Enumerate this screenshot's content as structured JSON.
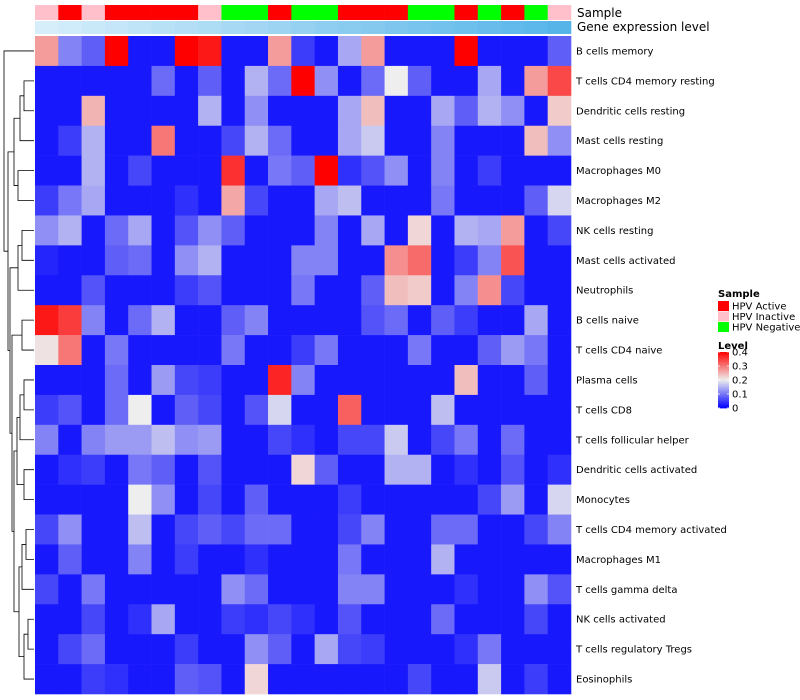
{
  "chart_data": {
    "type": "heatmap",
    "title": "",
    "row_labels": [
      "B cells memory",
      "T cells CD4 memory resting",
      "Dendritic cells resting",
      "Mast cells resting",
      "Macrophages M0",
      "Macrophages M2",
      "NK cells resting",
      "Mast cells activated",
      "Neutrophils",
      "B cells naive",
      "T cells CD4 naive",
      "Plasma cells",
      "T cells CD8",
      "T cells follicular helper",
      "Dendritic cells activated",
      "Monocytes",
      "T cells CD4 memory activated",
      "Macrophages M1",
      "T cells gamma delta",
      "NK cells activated",
      "T cells regulatory  Tregs",
      "Eosinophils"
    ],
    "annotation_labels": [
      "Sample",
      "Gene expression level"
    ],
    "samples": [
      "HPV Inactive",
      "HPV Active",
      "HPV Inactive",
      "HPV Active",
      "HPV Active",
      "HPV Active",
      "HPV Active",
      "HPV Inactive",
      "HPV Negative",
      "HPV Negative",
      "HPV Active",
      "HPV Negative",
      "HPV Negative",
      "HPV Active",
      "HPV Active",
      "HPV Active",
      "HPV Negative",
      "HPV Negative",
      "HPV Active",
      "HPV Negative",
      "HPV Active",
      "HPV Negative",
      "HPV Inactive"
    ],
    "expression_levels": [
      0.02,
      0.03,
      0.04,
      0.05,
      0.06,
      0.07,
      0.08,
      0.09,
      0.1,
      0.11,
      0.12,
      0.13,
      0.14,
      0.15,
      0.16,
      0.17,
      0.18,
      0.19,
      0.2,
      0.21,
      0.22,
      0.23,
      0.24
    ],
    "values": [
      [
        0.27,
        0.11,
        0.08,
        0.4,
        0.02,
        0.02,
        0.4,
        0.38,
        0.02,
        0.02,
        0.27,
        0.05,
        0.02,
        0.14,
        0.27,
        0.02,
        0.02,
        0.02,
        0.4,
        0.02,
        0.02,
        0.02,
        0.08
      ],
      [
        0.02,
        0.02,
        0.02,
        0.02,
        0.02,
        0.09,
        0.02,
        0.08,
        0.02,
        0.15,
        0.09,
        0.4,
        0.12,
        0.02,
        0.09,
        0.2,
        0.08,
        0.02,
        0.02,
        0.14,
        0.02,
        0.27,
        0.34
      ],
      [
        0.02,
        0.02,
        0.25,
        0.02,
        0.02,
        0.02,
        0.02,
        0.15,
        0.02,
        0.12,
        0.02,
        0.02,
        0.02,
        0.14,
        0.24,
        0.02,
        0.02,
        0.14,
        0.08,
        0.15,
        0.12,
        0.02,
        0.23
      ],
      [
        0.02,
        0.05,
        0.15,
        0.02,
        0.02,
        0.3,
        0.02,
        0.02,
        0.06,
        0.15,
        0.09,
        0.02,
        0.02,
        0.14,
        0.17,
        0.02,
        0.02,
        0.11,
        0.02,
        0.02,
        0.02,
        0.24,
        0.12
      ],
      [
        0.02,
        0.02,
        0.15,
        0.02,
        0.06,
        0.02,
        0.02,
        0.02,
        0.36,
        0.02,
        0.1,
        0.08,
        0.4,
        0.04,
        0.07,
        0.12,
        0.02,
        0.11,
        0.02,
        0.05,
        0.02,
        0.02,
        0.02
      ],
      [
        0.05,
        0.1,
        0.14,
        0.02,
        0.02,
        0.02,
        0.04,
        0.02,
        0.26,
        0.06,
        0.02,
        0.02,
        0.14,
        0.16,
        0.02,
        0.02,
        0.02,
        0.1,
        0.02,
        0.02,
        0.02,
        0.08,
        0.18
      ],
      [
        0.12,
        0.15,
        0.02,
        0.09,
        0.14,
        0.02,
        0.07,
        0.12,
        0.08,
        0.02,
        0.02,
        0.02,
        0.11,
        0.02,
        0.14,
        0.02,
        0.22,
        0.02,
        0.15,
        0.14,
        0.27,
        0.02,
        0.06
      ],
      [
        0.03,
        0.02,
        0.02,
        0.08,
        0.09,
        0.02,
        0.12,
        0.15,
        0.02,
        0.02,
        0.02,
        0.11,
        0.11,
        0.02,
        0.02,
        0.28,
        0.31,
        0.02,
        0.05,
        0.11,
        0.33,
        0.02,
        0.02
      ],
      [
        0.02,
        0.02,
        0.07,
        0.02,
        0.02,
        0.02,
        0.05,
        0.07,
        0.02,
        0.02,
        0.02,
        0.1,
        0.02,
        0.02,
        0.08,
        0.24,
        0.23,
        0.02,
        0.11,
        0.28,
        0.06,
        0.02,
        0.02
      ],
      [
        0.38,
        0.35,
        0.11,
        0.02,
        0.09,
        0.15,
        0.02,
        0.02,
        0.08,
        0.11,
        0.02,
        0.02,
        0.02,
        0.02,
        0.07,
        0.09,
        0.02,
        0.08,
        0.05,
        0.02,
        0.02,
        0.14,
        0.02
      ],
      [
        0.21,
        0.3,
        0.02,
        0.1,
        0.02,
        0.02,
        0.02,
        0.02,
        0.1,
        0.02,
        0.02,
        0.05,
        0.1,
        0.02,
        0.02,
        0.02,
        0.1,
        0.02,
        0.02,
        0.08,
        0.13,
        0.1,
        0.02
      ],
      [
        0.02,
        0.02,
        0.02,
        0.09,
        0.02,
        0.13,
        0.06,
        0.05,
        0.02,
        0.02,
        0.37,
        0.11,
        0.02,
        0.02,
        0.02,
        0.02,
        0.02,
        0.02,
        0.24,
        0.02,
        0.02,
        0.08,
        0.02
      ],
      [
        0.05,
        0.07,
        0.02,
        0.09,
        0.2,
        0.02,
        0.08,
        0.06,
        0.02,
        0.07,
        0.18,
        0.02,
        0.02,
        0.32,
        0.02,
        0.02,
        0.02,
        0.16,
        0.02,
        0.02,
        0.02,
        0.02,
        0.02
      ],
      [
        0.11,
        0.02,
        0.11,
        0.13,
        0.13,
        0.16,
        0.12,
        0.13,
        0.02,
        0.02,
        0.06,
        0.04,
        0.02,
        0.06,
        0.06,
        0.17,
        0.02,
        0.06,
        0.1,
        0.02,
        0.09,
        0.02,
        0.02
      ],
      [
        0.02,
        0.04,
        0.05,
        0.02,
        0.1,
        0.08,
        0.02,
        0.07,
        0.02,
        0.02,
        0.02,
        0.22,
        0.08,
        0.02,
        0.02,
        0.15,
        0.15,
        0.02,
        0.04,
        0.02,
        0.07,
        0.02,
        0.04
      ],
      [
        0.02,
        0.02,
        0.02,
        0.02,
        0.2,
        0.12,
        0.02,
        0.06,
        0.02,
        0.08,
        0.02,
        0.02,
        0.02,
        0.05,
        0.02,
        0.02,
        0.02,
        0.02,
        0.02,
        0.06,
        0.13,
        0.02,
        0.18
      ],
      [
        0.06,
        0.12,
        0.02,
        0.02,
        0.16,
        0.02,
        0.06,
        0.08,
        0.06,
        0.09,
        0.09,
        0.02,
        0.02,
        0.06,
        0.11,
        0.02,
        0.02,
        0.09,
        0.09,
        0.02,
        0.02,
        0.06,
        0.11
      ],
      [
        0.02,
        0.08,
        0.02,
        0.02,
        0.11,
        0.02,
        0.05,
        0.02,
        0.02,
        0.04,
        0.02,
        0.02,
        0.02,
        0.1,
        0.02,
        0.02,
        0.02,
        0.15,
        0.02,
        0.02,
        0.02,
        0.02,
        0.02
      ],
      [
        0.06,
        0.02,
        0.1,
        0.02,
        0.02,
        0.02,
        0.02,
        0.02,
        0.12,
        0.09,
        0.02,
        0.02,
        0.02,
        0.11,
        0.11,
        0.02,
        0.02,
        0.02,
        0.04,
        0.02,
        0.02,
        0.12,
        0.07
      ],
      [
        0.02,
        0.02,
        0.06,
        0.02,
        0.04,
        0.14,
        0.02,
        0.02,
        0.05,
        0.04,
        0.06,
        0.04,
        0.02,
        0.07,
        0.02,
        0.02,
        0.02,
        0.09,
        0.02,
        0.02,
        0.02,
        0.06,
        0.02
      ],
      [
        0.02,
        0.06,
        0.09,
        0.02,
        0.02,
        0.02,
        0.05,
        0.02,
        0.02,
        0.12,
        0.08,
        0.02,
        0.14,
        0.06,
        0.05,
        0.02,
        0.02,
        0.02,
        0.04,
        0.1,
        0.02,
        0.02,
        0.02
      ],
      [
        0.02,
        0.02,
        0.05,
        0.04,
        0.02,
        0.02,
        0.08,
        0.07,
        0.02,
        0.22,
        0.02,
        0.02,
        0.02,
        0.02,
        0.02,
        0.02,
        0.06,
        0.02,
        0.02,
        0.17,
        0.02,
        0.05,
        0.02
      ]
    ],
    "legend_sample": {
      "title": "Sample",
      "entries": [
        {
          "label": "HPV Active",
          "color": "#ff0000"
        },
        {
          "label": "HPV Inactive",
          "color": "#ffc0cb"
        },
        {
          "label": "HPV Negative",
          "color": "#00ff00"
        }
      ]
    },
    "legend_level": {
      "title": "Level",
      "ticks": [
        "0.4",
        "0.3",
        "0.2",
        "0.1",
        "0"
      ],
      "tick_values": [
        0.4,
        0.3,
        0.2,
        0.1,
        0
      ],
      "range": [
        0,
        0.4
      ]
    },
    "colors": {
      "low": "#0000ff",
      "mid": "#eeeeee",
      "high": "#ff0000",
      "annot_low": "#d6eefa",
      "annot_high": "#56b4e9"
    },
    "row_dendrogram": {
      "leaf_order": [
        "B cells memory",
        "T cells CD4 memory resting",
        "Dendritic cells resting",
        "Mast cells resting",
        "Macrophages M0",
        "Macrophages M2",
        "NK cells resting",
        "Mast cells activated",
        "Neutrophils",
        "B cells naive",
        "T cells CD4 naive",
        "Plasma cells",
        "T cells CD8",
        "T cells follicular helper",
        "Dendritic cells activated",
        "Monocytes",
        "T cells CD4 memory activated",
        "Macrophages M1",
        "T cells gamma delta",
        "NK cells activated",
        "T cells regulatory  Tregs",
        "Eosinophils"
      ]
    }
  }
}
